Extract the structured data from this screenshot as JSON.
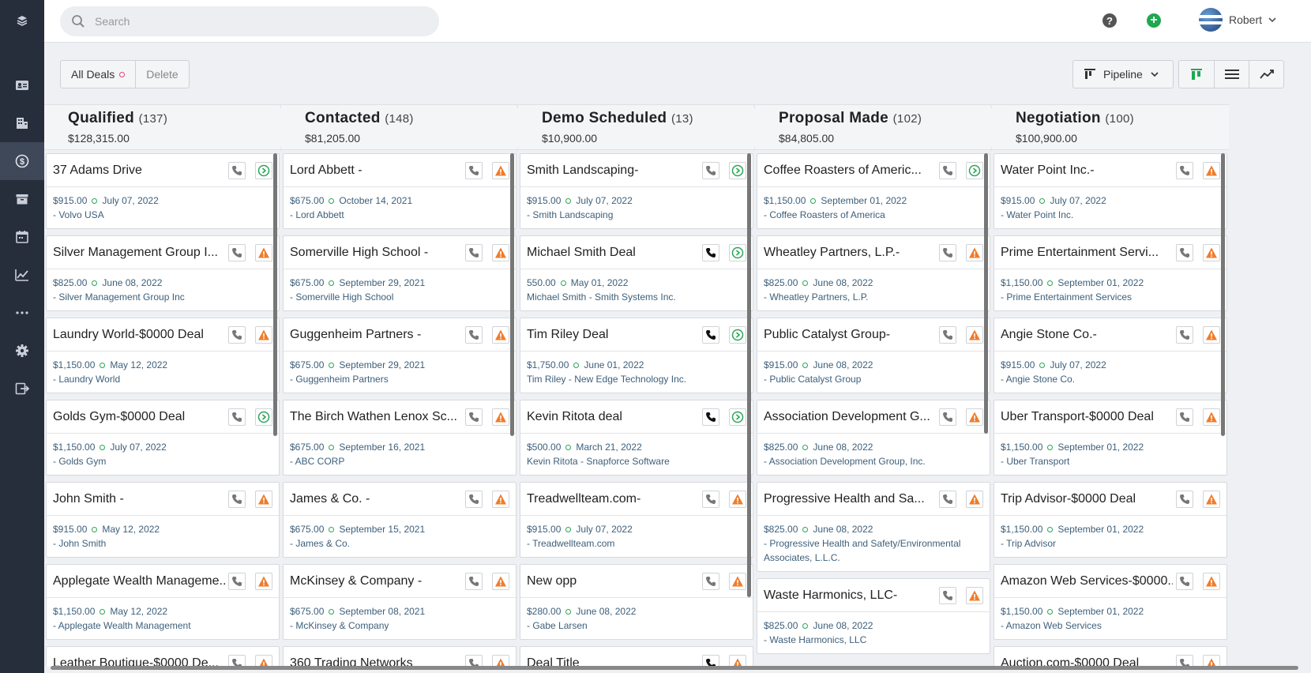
{
  "search": {
    "placeholder": "Search"
  },
  "user": {
    "name": "Robert"
  },
  "toolbar": {
    "all_deals": "All Deals",
    "delete": "Delete",
    "pipeline": "Pipeline"
  },
  "sidebar": {
    "icons": [
      "contacts-icon",
      "companies-icon",
      "deals-icon",
      "archive-icon",
      "calendar-icon",
      "reports-icon",
      "more-icon",
      "settings-icon",
      "logout-icon"
    ]
  },
  "colors": {
    "sidebar": "#262d3b",
    "accent_green": "#1fa84f",
    "warning": "#f07c2a",
    "link": "#3d5f7a"
  },
  "columns": [
    {
      "title": "Qualified",
      "count": "(137)",
      "total": "$128,315.00",
      "cards": [
        {
          "title": "37 Adams Drive",
          "amount": "$915.00",
          "date": "July 07, 2022",
          "org": "- Volvo USA",
          "status": "go",
          "phone": "light"
        },
        {
          "title": "Silver Management Group I...",
          "amount": "$825.00",
          "date": "June 08, 2022",
          "org": "- Silver Management Group Inc",
          "status": "warn",
          "phone": "light"
        },
        {
          "title": "Laundry World-$0000 Deal",
          "amount": "$1,150.00",
          "date": "May 12, 2022",
          "org": "- Laundry World",
          "status": "warn",
          "phone": "light"
        },
        {
          "title": "Golds Gym-$0000 Deal",
          "amount": "$1,150.00",
          "date": "July 07, 2022",
          "org": "- Golds Gym",
          "status": "go",
          "phone": "light"
        },
        {
          "title": "John Smith -",
          "amount": "$915.00",
          "date": "May 12, 2022",
          "org": "- John Smith",
          "status": "warn",
          "phone": "light"
        },
        {
          "title": "Applegate Wealth Manageme...",
          "amount": "$1,150.00",
          "date": "May 12, 2022",
          "org": "- Applegate Wealth Management",
          "status": "warn",
          "phone": "light"
        },
        {
          "title": "Leather Boutique-$0000 De...",
          "amount": "",
          "date": "",
          "org": "",
          "status": "warn",
          "phone": "light"
        }
      ]
    },
    {
      "title": "Contacted",
      "count": "(148)",
      "total": "$81,205.00",
      "cards": [
        {
          "title": "Lord Abbett -",
          "amount": "$675.00",
          "date": "October 14, 2021",
          "org": "- Lord Abbett",
          "status": "warn",
          "phone": "light"
        },
        {
          "title": "Somerville High School -",
          "amount": "$675.00",
          "date": "September 29, 2021",
          "org": "- Somerville High School",
          "status": "warn",
          "phone": "light"
        },
        {
          "title": "Guggenheim Partners -",
          "amount": "$675.00",
          "date": "September 29, 2021",
          "org": "- Guggenheim Partners",
          "status": "warn",
          "phone": "light"
        },
        {
          "title": "The Birch Wathen Lenox Sc...",
          "amount": "$675.00",
          "date": "September 16, 2021",
          "org": "- ABC CORP",
          "status": "warn",
          "phone": "light"
        },
        {
          "title": "James & Co. -",
          "amount": "$675.00",
          "date": "September 15, 2021",
          "org": "- James & Co.",
          "status": "warn",
          "phone": "light"
        },
        {
          "title": "McKinsey & Company -",
          "amount": "$675.00",
          "date": "September 08, 2021",
          "org": "- McKinsey & Company",
          "status": "warn",
          "phone": "light"
        },
        {
          "title": "360 Trading Networks",
          "amount": "",
          "date": "",
          "org": "",
          "status": "warn",
          "phone": "light"
        }
      ]
    },
    {
      "title": "Demo Scheduled",
      "count": "(13)",
      "total": "$10,900.00",
      "cards": [
        {
          "title": "Smith Landscaping-",
          "amount": "$915.00",
          "date": "July 07, 2022",
          "org": "- Smith Landscaping",
          "status": "go",
          "phone": "light"
        },
        {
          "title": "Michael Smith Deal",
          "amount": "550.00",
          "date": "May 01, 2022",
          "org": "Michael Smith - Smith Systems Inc.",
          "status": "go",
          "phone": "dark"
        },
        {
          "title": "Tim Riley Deal",
          "amount": "$1,750.00",
          "date": "June 01, 2022",
          "org": "Tim Riley - New Edge Technology Inc.",
          "status": "go",
          "phone": "dark"
        },
        {
          "title": "Kevin Ritota deal",
          "amount": "$500.00",
          "date": "March 21, 2022",
          "org": "Kevin Ritota - Snapforce Software",
          "status": "go",
          "phone": "dark"
        },
        {
          "title": "Treadwellteam.com-",
          "amount": "$915.00",
          "date": "July 07, 2022",
          "org": "- Treadwellteam.com",
          "status": "warn",
          "phone": "light"
        },
        {
          "title": "New opp",
          "amount": "$280.00",
          "date": "June 08, 2022",
          "org": "- Gabe Larsen",
          "status": "warn",
          "phone": "light"
        },
        {
          "title": "Deal Title",
          "amount": "",
          "date": "",
          "org": "",
          "status": "warn",
          "phone": "dark"
        }
      ]
    },
    {
      "title": "Proposal Made",
      "count": "(102)",
      "total": "$84,805.00",
      "cards": [
        {
          "title": "Coffee Roasters of Americ...",
          "amount": "$1,150.00",
          "date": "September 01, 2022",
          "org": "- Coffee Roasters of America",
          "status": "go",
          "phone": "light"
        },
        {
          "title": "Wheatley Partners, L.P.-",
          "amount": "$825.00",
          "date": "June 08, 2022",
          "org": "- Wheatley Partners, L.P.",
          "status": "warn",
          "phone": "light"
        },
        {
          "title": "Public Catalyst Group-",
          "amount": "$915.00",
          "date": "June 08, 2022",
          "org": "- Public Catalyst Group",
          "status": "warn",
          "phone": "light"
        },
        {
          "title": "Association Development G...",
          "amount": "$825.00",
          "date": "June 08, 2022",
          "org": "- Association Development Group, Inc.",
          "status": "warn",
          "phone": "light"
        },
        {
          "title": "Progressive Health and Sa...",
          "amount": "$825.00",
          "date": "June 08, 2022",
          "org": "- Progressive Health and Safety/Environmental Associates, L.L.C.",
          "status": "warn",
          "phone": "light"
        },
        {
          "title": "Waste Harmonics, LLC-",
          "amount": "$825.00",
          "date": "June 08, 2022",
          "org": "- Waste Harmonics, LLC",
          "status": "warn",
          "phone": "light"
        }
      ]
    },
    {
      "title": "Negotiation",
      "count": "(100)",
      "total": "$100,900.00",
      "cards": [
        {
          "title": "Water Point Inc.-",
          "amount": "$915.00",
          "date": "July 07, 2022",
          "org": "- Water Point Inc.",
          "status": "warn",
          "phone": "light"
        },
        {
          "title": "Prime Entertainment Servi...",
          "amount": "$1,150.00",
          "date": "September 01, 2022",
          "org": "- Prime Entertainment Services",
          "status": "warn",
          "phone": "light"
        },
        {
          "title": "Angie Stone Co.-",
          "amount": "$915.00",
          "date": "July 07, 2022",
          "org": "- Angie Stone Co.",
          "status": "warn",
          "phone": "light"
        },
        {
          "title": "Uber Transport-$0000 Deal",
          "amount": "$1,150.00",
          "date": "September 01, 2022",
          "org": "- Uber Transport",
          "status": "warn",
          "phone": "light"
        },
        {
          "title": "Trip Advisor-$0000 Deal",
          "amount": "$1,150.00",
          "date": "September 01, 2022",
          "org": "- Trip Advisor",
          "status": "warn",
          "phone": "light"
        },
        {
          "title": "Amazon Web Services-$0000...",
          "amount": "$1,150.00",
          "date": "September 01, 2022",
          "org": "- Amazon Web Services",
          "status": "warn",
          "phone": "light"
        },
        {
          "title": "Auction.com-$0000 Deal",
          "amount": "",
          "date": "",
          "org": "",
          "status": "warn",
          "phone": "light"
        }
      ]
    }
  ]
}
